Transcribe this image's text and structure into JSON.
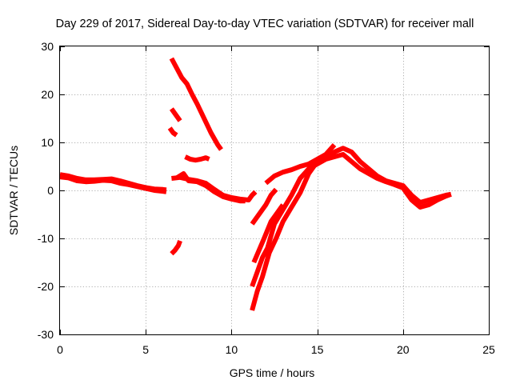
{
  "chart_data": {
    "type": "line",
    "title": "Day 229 of 2017, Sidereal Day-to-day VTEC variation (SDTVAR) for receiver mall",
    "xlabel": "GPS time / hours",
    "ylabel": "SDTVAR / TECUs",
    "xlim": [
      0,
      25
    ],
    "ylim": [
      -30,
      30
    ],
    "xticks": [
      0,
      5,
      10,
      15,
      20,
      25
    ],
    "yticks": [
      -30,
      -20,
      -10,
      0,
      10,
      20,
      30
    ],
    "xtick_labels": [
      "0",
      "5",
      "10",
      "15",
      "20",
      "25"
    ],
    "ytick_labels": [
      "-30",
      "-20",
      "-10",
      "0",
      "10",
      "20",
      "30"
    ],
    "grid": true,
    "color": "#ff0000",
    "series": [
      {
        "name": "track-main",
        "points": [
          [
            0,
            3.3
          ],
          [
            0.5,
            3.0
          ],
          [
            1,
            2.5
          ],
          [
            1.5,
            2.2
          ],
          [
            2,
            2.2
          ],
          [
            2.5,
            2.3
          ],
          [
            3,
            2.4
          ],
          [
            3.5,
            2.0
          ],
          [
            4,
            1.5
          ],
          [
            4.5,
            1.0
          ],
          [
            5,
            0.6
          ],
          [
            5.5,
            0.3
          ],
          [
            6,
            0.2
          ],
          [
            6.2,
            0.1
          ]
        ]
      },
      {
        "name": "track-main-b",
        "points": [
          [
            0,
            2.8
          ],
          [
            0.5,
            2.6
          ],
          [
            1,
            2.0
          ],
          [
            1.5,
            1.8
          ],
          [
            2,
            1.9
          ],
          [
            2.5,
            2.1
          ],
          [
            3,
            2.0
          ],
          [
            3.5,
            1.5
          ],
          [
            4,
            1.2
          ],
          [
            4.5,
            0.8
          ],
          [
            5,
            0.4
          ],
          [
            5.5,
            0.0
          ],
          [
            6,
            -0.2
          ],
          [
            6.2,
            -0.3
          ]
        ]
      },
      {
        "name": "track-a",
        "points": [
          [
            6.5,
            27.5
          ],
          [
            6.8,
            25.5
          ],
          [
            7.1,
            23.5
          ],
          [
            7.4,
            22.2
          ],
          [
            7.7,
            20.0
          ],
          [
            8,
            18.0
          ],
          [
            8.4,
            15.0
          ],
          [
            8.8,
            12.0
          ],
          [
            9.2,
            9.5
          ],
          [
            9.4,
            8.5
          ]
        ]
      },
      {
        "name": "track-b",
        "points": [
          [
            6.5,
            17.0
          ],
          [
            6.8,
            15.5
          ],
          [
            7.0,
            14.5
          ]
        ]
      },
      {
        "name": "track-c",
        "points": [
          [
            6.4,
            13.0
          ],
          [
            6.6,
            12.0
          ],
          [
            6.8,
            11.5
          ]
        ]
      },
      {
        "name": "track-d",
        "points": [
          [
            7.3,
            7.0
          ],
          [
            7.6,
            6.5
          ],
          [
            7.9,
            6.3
          ],
          [
            8.2,
            6.5
          ],
          [
            8.5,
            6.8
          ],
          [
            8.7,
            6.5
          ]
        ]
      },
      {
        "name": "track-e",
        "points": [
          [
            6.5,
            2.5
          ],
          [
            7,
            2.7
          ],
          [
            7.5,
            2.3
          ],
          [
            8,
            2.0
          ],
          [
            8.5,
            1.5
          ],
          [
            9,
            0.2
          ],
          [
            9.5,
            -1.0
          ],
          [
            10,
            -1.5
          ],
          [
            10.5,
            -1.8
          ],
          [
            11,
            -2.0
          ],
          [
            11.2,
            -1.0
          ],
          [
            11.4,
            -0.3
          ]
        ]
      },
      {
        "name": "track-f",
        "points": [
          [
            6.8,
            2.6
          ],
          [
            7.2,
            3.5
          ],
          [
            7.5,
            2.0
          ],
          [
            8,
            1.8
          ],
          [
            8.5,
            1.0
          ],
          [
            9,
            -0.3
          ],
          [
            9.5,
            -1.3
          ],
          [
            10,
            -1.8
          ],
          [
            10.5,
            -2.2
          ],
          [
            10.8,
            -2.2
          ]
        ]
      },
      {
        "name": "track-g",
        "points": [
          [
            6.5,
            -13.2
          ],
          [
            6.7,
            -12.5
          ],
          [
            6.9,
            -11.5
          ],
          [
            7.0,
            -10.5
          ]
        ]
      },
      {
        "name": "track-h",
        "points": [
          [
            11.2,
            -25.0
          ],
          [
            11.5,
            -21.0
          ],
          [
            11.8,
            -18.0
          ],
          [
            12.2,
            -13.0
          ],
          [
            12.6,
            -10.0
          ],
          [
            13.0,
            -6.5
          ],
          [
            13.5,
            -3.5
          ],
          [
            14.0,
            -0.5
          ],
          [
            14.5,
            3.5
          ],
          [
            15.0,
            6.0
          ],
          [
            15.5,
            7.0
          ],
          [
            16.0,
            8.0
          ],
          [
            16.5,
            8.8
          ],
          [
            17.0,
            8.0
          ],
          [
            17.5,
            6.0
          ],
          [
            18.0,
            4.5
          ],
          [
            18.5,
            3.0
          ],
          [
            19.0,
            2.0
          ],
          [
            19.5,
            1.5
          ],
          [
            20.0,
            1.0
          ],
          [
            20.5,
            -1.0
          ],
          [
            21.0,
            -2.5
          ],
          [
            21.5,
            -2.0
          ],
          [
            22.0,
            -1.5
          ],
          [
            22.5,
            -1.0
          ],
          [
            22.8,
            -0.8
          ]
        ]
      },
      {
        "name": "track-i",
        "points": [
          [
            11.2,
            -20.0
          ],
          [
            11.5,
            -17.0
          ],
          [
            11.8,
            -14.0
          ],
          [
            12.1,
            -12.0
          ],
          [
            12.5,
            -7.0
          ],
          [
            13.0,
            -4.0
          ],
          [
            13.5,
            -1.0
          ],
          [
            14.0,
            2.5
          ],
          [
            14.5,
            4.5
          ],
          [
            15.0,
            5.5
          ],
          [
            15.5,
            6.5
          ],
          [
            16.0,
            7.0
          ],
          [
            16.5,
            7.5
          ],
          [
            17.0,
            6.0
          ],
          [
            17.5,
            4.5
          ],
          [
            18.0,
            3.5
          ],
          [
            18.5,
            2.5
          ],
          [
            19.0,
            1.8
          ],
          [
            19.5,
            1.2
          ],
          [
            20.0,
            0.5
          ],
          [
            20.5,
            -2.0
          ],
          [
            21.0,
            -3.5
          ],
          [
            21.5,
            -3.0
          ],
          [
            22.0,
            -2.0
          ],
          [
            22.5,
            -1.2
          ],
          [
            22.8,
            -0.8
          ]
        ]
      },
      {
        "name": "track-j",
        "points": [
          [
            11.3,
            -15.0
          ],
          [
            11.6,
            -12.5
          ],
          [
            11.9,
            -10.0
          ],
          [
            12.3,
            -6.5
          ],
          [
            12.7,
            -4.5
          ],
          [
            13.0,
            -3.0
          ]
        ]
      },
      {
        "name": "track-k",
        "points": [
          [
            11.2,
            -7.0
          ],
          [
            11.6,
            -5.0
          ],
          [
            12.0,
            -3.0
          ],
          [
            12.3,
            -1.0
          ],
          [
            12.6,
            0.2
          ]
        ]
      },
      {
        "name": "track-l",
        "points": [
          [
            12.0,
            1.5
          ],
          [
            12.5,
            3.0
          ],
          [
            13.0,
            3.8
          ],
          [
            13.5,
            4.3
          ],
          [
            14.0,
            5.0
          ],
          [
            14.5,
            5.5
          ],
          [
            15.0,
            6.5
          ],
          [
            15.5,
            7.5
          ],
          [
            16.0,
            9.5
          ]
        ]
      }
    ]
  }
}
